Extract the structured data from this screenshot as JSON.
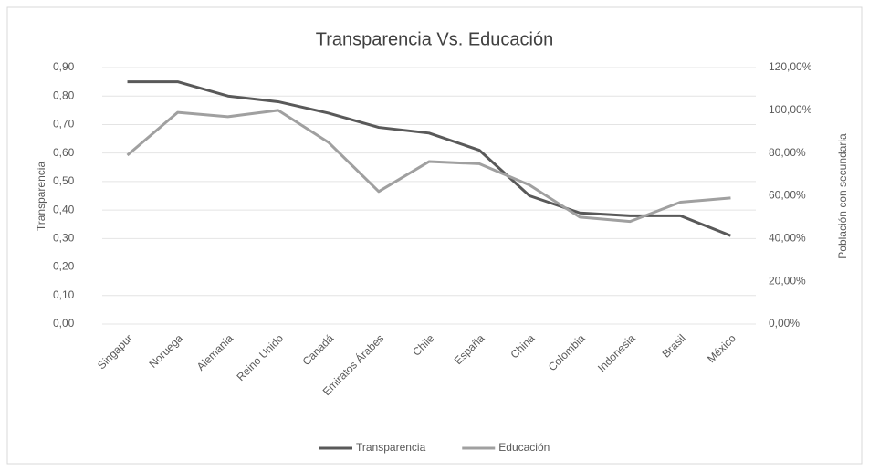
{
  "chart_data": {
    "type": "line",
    "title": "Transparencia Vs. Educación",
    "y_label": "Transparencia",
    "y2_label": "Población con secundaria",
    "categories": [
      "Singapur",
      "Noruega",
      "Alemania",
      "Reino Unido",
      "Canadá",
      "Emiratos Árabes",
      "Chile",
      "España",
      "China",
      "Colombia",
      "Indonesia",
      "Brasil",
      "México"
    ],
    "series": [
      {
        "name": "Transparencia",
        "color": "#595959",
        "values": [
          0.85,
          0.85,
          0.8,
          0.78,
          0.74,
          0.69,
          0.67,
          0.61,
          0.45,
          0.39,
          0.38,
          0.38,
          0.31
        ]
      },
      {
        "name": "Educación",
        "color": "#a0a0a0",
        "axis": "y2",
        "values": [
          79,
          99,
          97,
          100,
          85,
          62,
          76,
          75,
          65,
          50,
          48,
          57,
          59
        ]
      }
    ],
    "ylim": [
      0,
      0.9
    ],
    "yticks": [
      {
        "value": 0,
        "label": "0,00"
      },
      {
        "value": 0.1,
        "label": "0,10"
      },
      {
        "value": 0.2,
        "label": "0,20"
      },
      {
        "value": 0.3,
        "label": "0,30"
      },
      {
        "value": 0.4,
        "label": "0,40"
      },
      {
        "value": 0.5,
        "label": "0,50"
      },
      {
        "value": 0.6,
        "label": "0,60"
      },
      {
        "value": 0.7,
        "label": "0,70"
      },
      {
        "value": 0.8,
        "label": "0,80"
      },
      {
        "value": 0.9,
        "label": "0,90"
      }
    ],
    "y2lim": [
      0,
      120
    ],
    "y2ticks": [
      {
        "value": 0,
        "label": "0,00%"
      },
      {
        "value": 20,
        "label": "20,00%"
      },
      {
        "value": 40,
        "label": "40,00%"
      },
      {
        "value": 60,
        "label": "60,00%"
      },
      {
        "value": 80,
        "label": "80,00%"
      },
      {
        "value": 100,
        "label": "100,00%"
      },
      {
        "value": 120,
        "label": "120,00%"
      }
    ],
    "grid": true,
    "legend": "bottom"
  }
}
